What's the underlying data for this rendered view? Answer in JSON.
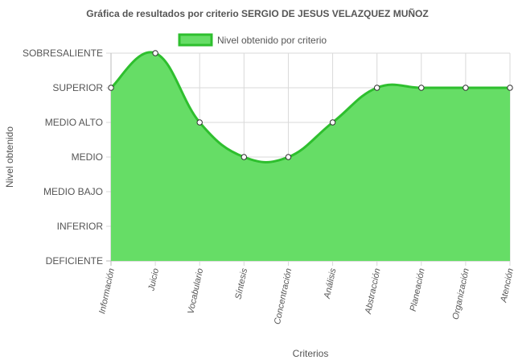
{
  "chart_data": {
    "type": "area",
    "title": "Gráfica de resultados por criterio SERGIO DE JESUS VELAZQUEZ MUÑOZ",
    "xlabel": "Criterios",
    "ylabel": "Nivel obtenido",
    "categories": [
      "Información",
      "Juicio",
      "Vocabulario",
      "Síntesis",
      "Concentración",
      "Análisis",
      "Abstracción",
      "Planeación",
      "Organización",
      "Atención"
    ],
    "levels": [
      "DEFICIENTE",
      "INFERIOR",
      "MEDIO BAJO",
      "MEDIO",
      "MEDIO ALTO",
      "SUPERIOR",
      "SOBRESALIENTE"
    ],
    "ylim": [
      0,
      6
    ],
    "series": [
      {
        "name": "Nivel obtenido por criterio",
        "values": [
          5,
          6,
          4,
          3,
          3,
          4,
          5,
          5,
          5,
          5
        ]
      }
    ],
    "grid": true,
    "legend": "top-center",
    "colors": {
      "fill": "#66dd66",
      "line": "#2ebf2e",
      "grid": "#d9d9d9",
      "text": "#555555"
    }
  }
}
